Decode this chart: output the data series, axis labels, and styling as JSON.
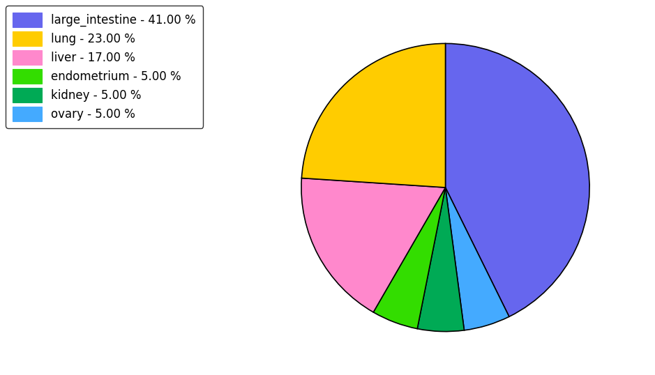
{
  "labels_ordered": [
    "large_intestine",
    "ovary",
    "kidney",
    "endometrium",
    "liver",
    "lung"
  ],
  "values_ordered": [
    41.0,
    5.0,
    5.0,
    5.0,
    17.0,
    23.0
  ],
  "colors_ordered": [
    "#6666ee",
    "#44aaff",
    "#00aa55",
    "#33dd00",
    "#ff88cc",
    "#ffcc00"
  ],
  "legend_entries": [
    {
      "label": "large_intestine - 41.00 %",
      "color": "#6666ee"
    },
    {
      "label": "lung - 23.00 %",
      "color": "#ffcc00"
    },
    {
      "label": "liver - 17.00 %",
      "color": "#ff88cc"
    },
    {
      "label": "endometrium - 5.00 %",
      "color": "#33dd00"
    },
    {
      "label": "kidney - 5.00 %",
      "color": "#00aa55"
    },
    {
      "label": "ovary - 5.00 %",
      "color": "#44aaff"
    }
  ],
  "startangle": 90,
  "counterclock": false,
  "figsize": [
    9.39,
    5.38
  ],
  "dpi": 100,
  "legend_fontsize": 12,
  "edgecolor": "black",
  "linewidth": 1.2
}
